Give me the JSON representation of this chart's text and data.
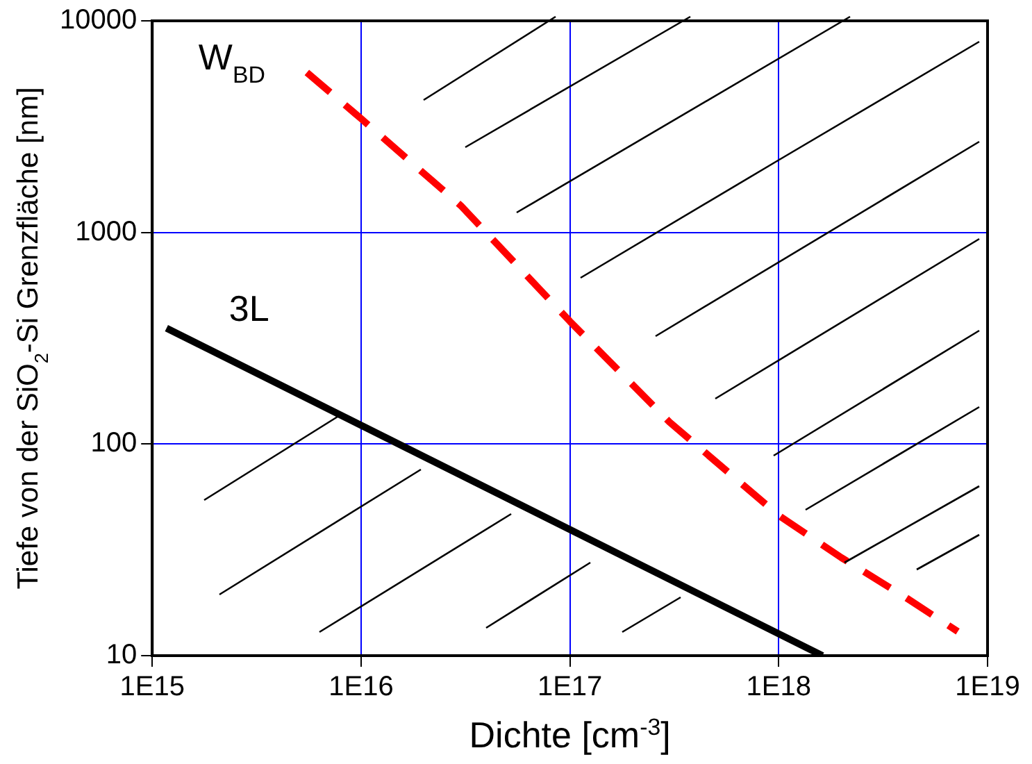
{
  "chart_data": {
    "type": "line",
    "xlabel": "Dichte [cm$^{-3}$]",
    "ylabel": "Tiefe von der SiO$_{2}$-Si Grenzfläche [nm]",
    "log": "xy",
    "grid": true,
    "legend": false,
    "marker": "none",
    "xlim": [
      1000000000000000.0,
      1e+19
    ],
    "xticks": [
      {
        "value": 1000000000000000.0,
        "label": "1E15"
      },
      {
        "value": 1e+16,
        "label": "1E16"
      },
      {
        "value": 1e+17,
        "label": "1E17"
      },
      {
        "value": 1e+18,
        "label": "1E18"
      },
      {
        "value": 1e+19,
        "label": "1E19"
      }
    ],
    "ylim": [
      10,
      10000
    ],
    "yticks": [
      10,
      100,
      1000,
      10000
    ],
    "series": [
      {
        "name": "3L",
        "color": "#000000",
        "line_style": "solid",
        "x": [
          1170000000000000.0,
          1.62e+18
        ],
        "values": [
          353,
          10
        ]
      },
      {
        "name": "W$_{BD}$",
        "color": "#ff0000",
        "line_style": "dashed",
        "x": [
          5500000000000000.0,
          1e+16,
          3e+16,
          1e+17,
          3e+17,
          1e+18,
          2e+18,
          4e+18,
          7.2e+18
        ],
        "values": [
          5700,
          3450,
          1340,
          380,
          127,
          46,
          29,
          19,
          13
        ]
      }
    ]
  }
}
